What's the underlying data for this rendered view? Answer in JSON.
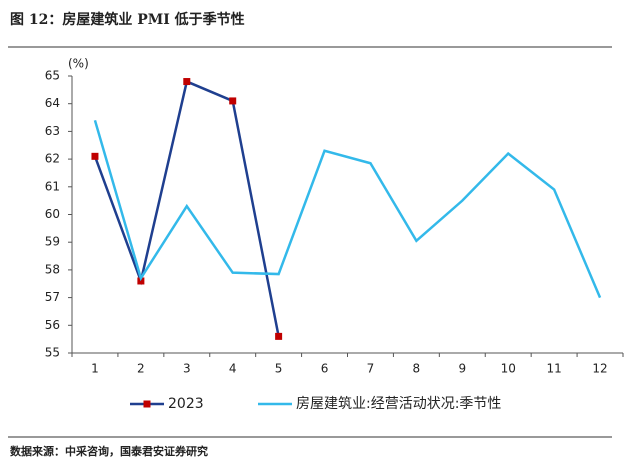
{
  "chart_data": {
    "type": "line",
    "title": "图 12：房屋建筑业 PMI 低于季节性",
    "y_unit": "(%)",
    "source": "数据来源：中采咨询，国泰君安证券研究",
    "categories": [
      "1",
      "2",
      "3",
      "4",
      "5",
      "6",
      "7",
      "8",
      "9",
      "10",
      "11",
      "12"
    ],
    "series": [
      {
        "name": "2023",
        "color": "#1f3f8f",
        "marker_color": "#c00000",
        "values": [
          62.1,
          57.6,
          64.8,
          64.1,
          55.6,
          null,
          null,
          null,
          null,
          null,
          null,
          null
        ]
      },
      {
        "name": "房屋建筑业:经营活动状况:季节性",
        "color": "#33b9ea",
        "values": [
          63.4,
          57.7,
          60.3,
          57.9,
          57.85,
          62.3,
          61.85,
          59.05,
          60.5,
          62.2,
          60.9,
          57.0
        ]
      }
    ],
    "ylim": [
      55,
      65
    ],
    "yticks": [
      55,
      56,
      57,
      58,
      59,
      60,
      61,
      62,
      63,
      64,
      65
    ],
    "legend": "bottom"
  }
}
